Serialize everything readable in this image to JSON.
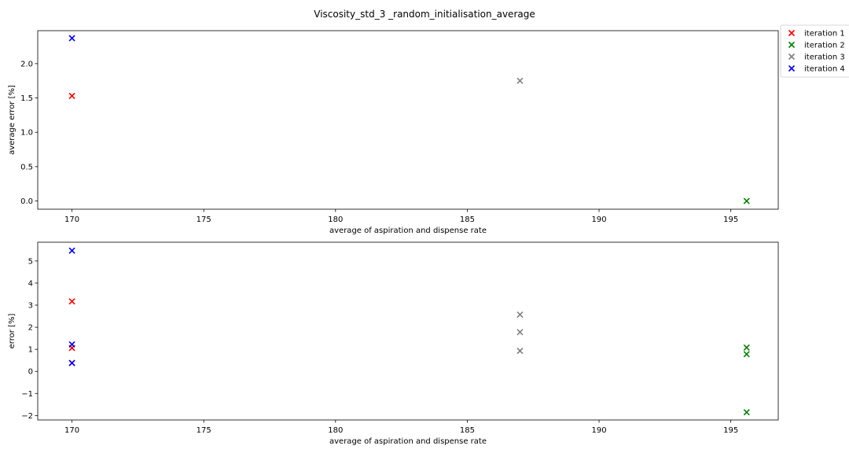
{
  "chart_data": {
    "title": "Viscosity_std_3 _random_initialisation_average",
    "type": "scatter",
    "marker": "x",
    "legend": {
      "placement": "outside top-right",
      "entries": [
        "iteration 1",
        "iteration 2",
        "iteration 3",
        "iteration 4"
      ]
    },
    "colors": {
      "iteration 1": "#ff0000",
      "iteration 2": "#008000",
      "iteration 3": "#808080",
      "iteration 4": "#0000ff"
    },
    "subplots": [
      {
        "xlabel": "average of aspiration and dispense rate",
        "ylabel": "average error [%]",
        "xlim": [
          168.7,
          196.8
        ],
        "ylim": [
          -0.12,
          2.48
        ],
        "xticks": [
          170,
          175,
          180,
          185,
          190,
          195
        ],
        "xtick_labels": [
          "170",
          "175",
          "180",
          "185",
          "190",
          "195"
        ],
        "yticks": [
          0.0,
          0.5,
          1.0,
          1.5,
          2.0
        ],
        "ytick_labels": [
          "0.0",
          "0.5",
          "1.0",
          "1.5",
          "2.0"
        ],
        "grid": false,
        "series": [
          {
            "name": "iteration 1",
            "x": [
              170
            ],
            "y": [
              1.53
            ]
          },
          {
            "name": "iteration 2",
            "x": [
              195.6
            ],
            "y": [
              0.0
            ]
          },
          {
            "name": "iteration 3",
            "x": [
              187
            ],
            "y": [
              1.75
            ]
          },
          {
            "name": "iteration 4",
            "x": [
              170
            ],
            "y": [
              2.37
            ]
          }
        ]
      },
      {
        "xlabel": "average of aspiration and dispense rate",
        "ylabel": "error [%]",
        "xlim": [
          168.7,
          196.8
        ],
        "ylim": [
          -2.2,
          5.85
        ],
        "xticks": [
          170,
          175,
          180,
          185,
          190,
          195
        ],
        "xtick_labels": [
          "170",
          "175",
          "180",
          "185",
          "190",
          "195"
        ],
        "yticks": [
          -2,
          -1,
          0,
          1,
          2,
          3,
          4,
          5
        ],
        "ytick_labels": [
          "−2",
          "−1",
          "0",
          "1",
          "2",
          "3",
          "4",
          "5"
        ],
        "grid": false,
        "series": [
          {
            "name": "iteration 1",
            "x": [
              170,
              170,
              170
            ],
            "y": [
              3.17,
              1.06,
              0.38
            ]
          },
          {
            "name": "iteration 2",
            "x": [
              195.6,
              195.6,
              195.6
            ],
            "y": [
              1.08,
              0.78,
              -1.85
            ]
          },
          {
            "name": "iteration 3",
            "x": [
              187,
              187,
              187
            ],
            "y": [
              2.57,
              1.78,
              0.93
            ]
          },
          {
            "name": "iteration 4",
            "x": [
              170,
              170,
              170
            ],
            "y": [
              5.47,
              1.22,
              0.38
            ]
          }
        ]
      }
    ]
  }
}
